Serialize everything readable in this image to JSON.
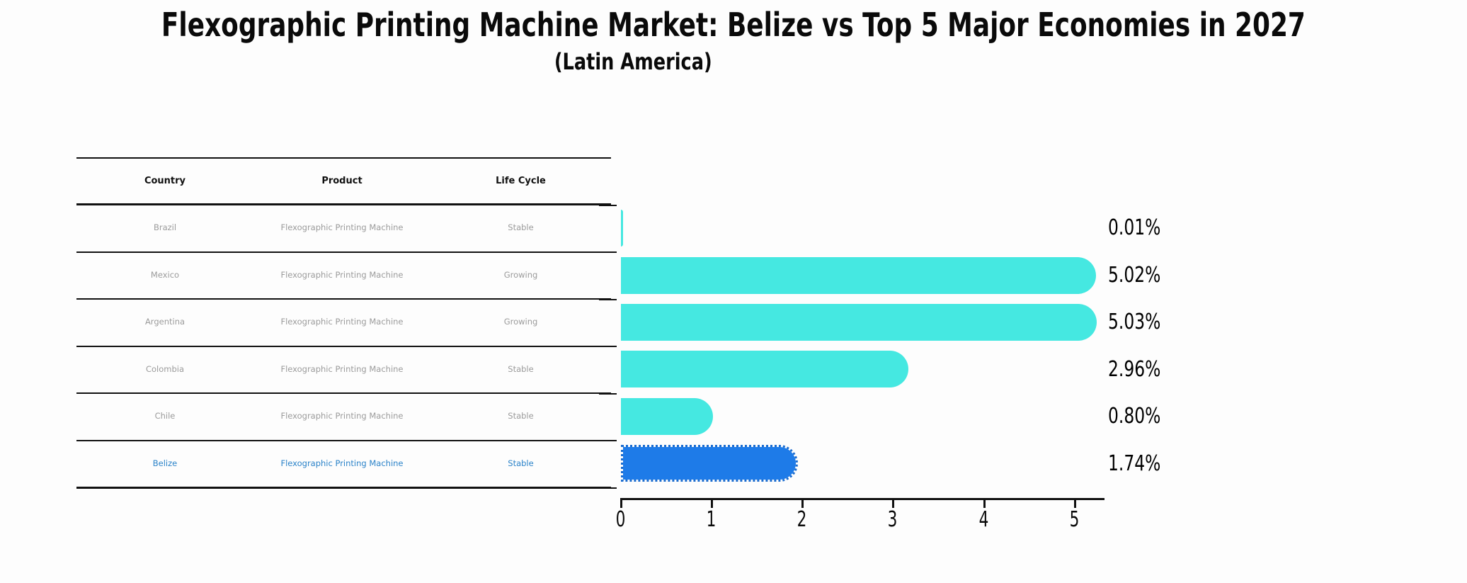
{
  "title": "Flexographic Printing Machine Market: Belize vs Top 5 Major Economies in 2027",
  "subtitle": "(Latin America)",
  "table": {
    "headers": {
      "country": "Country",
      "product": "Product",
      "life_cycle": "Life Cycle"
    },
    "rows": [
      {
        "country": "Brazil",
        "product": "Flexographic Printing Machine",
        "life_cycle": "Stable",
        "highlighted": false
      },
      {
        "country": "Mexico",
        "product": "Flexographic Printing Machine",
        "life_cycle": "Growing",
        "highlighted": false
      },
      {
        "country": "Argentina",
        "product": "Flexographic Printing Machine",
        "life_cycle": "Growing",
        "highlighted": false
      },
      {
        "country": "Colombia",
        "product": "Flexographic Printing Machine",
        "life_cycle": "Stable",
        "highlighted": false
      },
      {
        "country": "Chile",
        "product": "Flexographic Printing Machine",
        "life_cycle": "Stable",
        "highlighted": false
      },
      {
        "country": "Belize",
        "product": "Flexographic Printing Machine",
        "life_cycle": "Stable",
        "highlighted": true
      }
    ]
  },
  "chart_data": {
    "type": "bar",
    "orientation": "horizontal",
    "categories": [
      "Brazil",
      "Mexico",
      "Argentina",
      "Colombia",
      "Chile",
      "Belize"
    ],
    "values": [
      0.01,
      5.02,
      5.03,
      2.96,
      0.8,
      1.74
    ],
    "value_labels": [
      "0.01%",
      "5.02%",
      "5.03%",
      "2.96%",
      "0.80%",
      "1.74%"
    ],
    "highlight_index": 5,
    "x_tick_labels": [
      "0",
      "1",
      "2",
      "3",
      "4",
      "5"
    ],
    "xlim": [
      0,
      5.3
    ],
    "grid": false,
    "legend": false,
    "colors": {
      "bar": "#45e8e1",
      "highlight_bar": "#1e7be8",
      "highlight_text": "#2b83c9",
      "row_text": "#9b9b9b"
    }
  }
}
